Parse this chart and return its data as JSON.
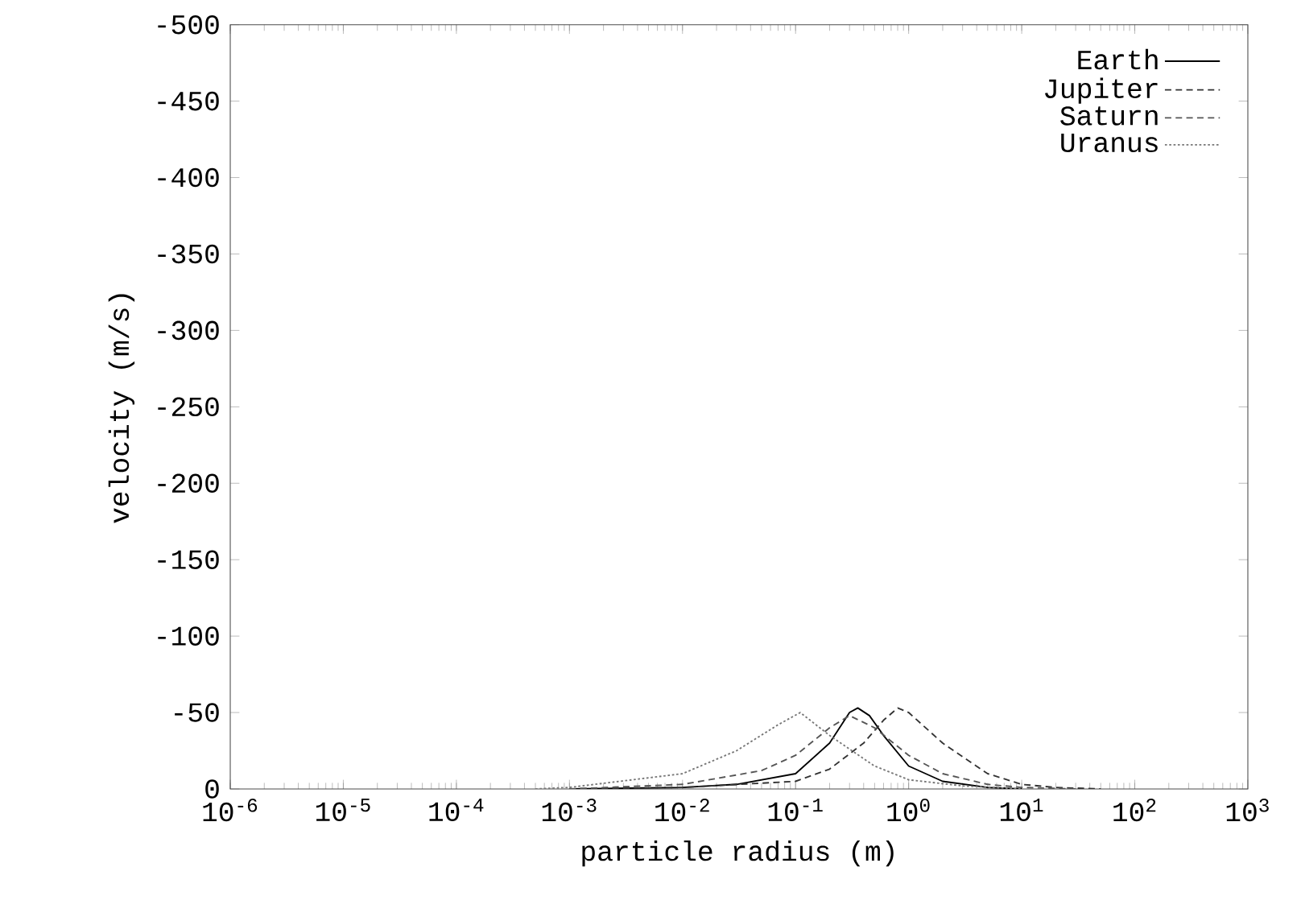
{
  "chart_data": {
    "type": "line",
    "xlabel": "particle radius (m)",
    "ylabel": "velocity (m/s)",
    "log": "x",
    "grid": false,
    "legend": "top right",
    "marker": "none",
    "xlim": [
      1e-06,
      1000
    ],
    "ylim": [
      0,
      -500
    ],
    "xticks": [
      {
        "value": 1e-06,
        "label": "10$^{-6}$"
      },
      {
        "value": 1e-05,
        "label": "10$^{-5}$"
      },
      {
        "value": 0.0001,
        "label": "10$^{-4}$"
      },
      {
        "value": 0.001,
        "label": "10$^{-3}$"
      },
      {
        "value": 0.01,
        "label": "10$^{-2}$"
      },
      {
        "value": 0.1,
        "label": "10$^{-1}$"
      },
      {
        "value": 1,
        "label": "10$^{0}$"
      },
      {
        "value": 10,
        "label": "10$^{1}$"
      },
      {
        "value": 100,
        "label": "10$^{2}$"
      },
      {
        "value": 1000,
        "label": "10$^{3}$"
      }
    ],
    "yticks": [
      0,
      -50,
      -100,
      -150,
      -200,
      -250,
      -300,
      -350,
      -400,
      -450,
      -500
    ],
    "series": [
      {
        "name": "Earth",
        "color": "#000000",
        "line_style": "solid",
        "x": [
          0.001,
          0.01,
          0.03,
          0.1,
          0.2,
          0.3,
          0.355,
          0.45,
          0.6,
          1,
          2,
          5,
          10
        ],
        "values": [
          0,
          -1,
          -3,
          -10,
          -30,
          -50,
          -53,
          -48,
          -35,
          -15,
          -5,
          -1,
          0
        ]
      },
      {
        "name": "Jupiter",
        "color": "#333333",
        "line_style": "dashed",
        "x": [
          0.001,
          0.01,
          0.1,
          0.2,
          0.4,
          0.6,
          0.8,
          1,
          2,
          5,
          10,
          20,
          50
        ],
        "values": [
          0,
          -1,
          -5,
          -13,
          -30,
          -45,
          -53,
          -50,
          -30,
          -10,
          -3,
          -1,
          0
        ]
      },
      {
        "name": "Saturn",
        "color": "#555555",
        "line_style": "dashed",
        "x": [
          0.001,
          0.01,
          0.05,
          0.1,
          0.2,
          0.3,
          0.5,
          1,
          2,
          5,
          10,
          30
        ],
        "values": [
          0,
          -3,
          -12,
          -22,
          -40,
          -48,
          -40,
          -22,
          -10,
          -3,
          -1,
          0
        ]
      },
      {
        "name": "Uranus",
        "color": "#777777",
        "line_style": "dotted",
        "x": [
          0.0005,
          0.001,
          0.01,
          0.03,
          0.07,
          0.11,
          0.2,
          0.5,
          1,
          3,
          10
        ],
        "values": [
          0,
          -1,
          -10,
          -25,
          -42,
          -50,
          -35,
          -15,
          -6,
          -2,
          0
        ]
      }
    ]
  }
}
